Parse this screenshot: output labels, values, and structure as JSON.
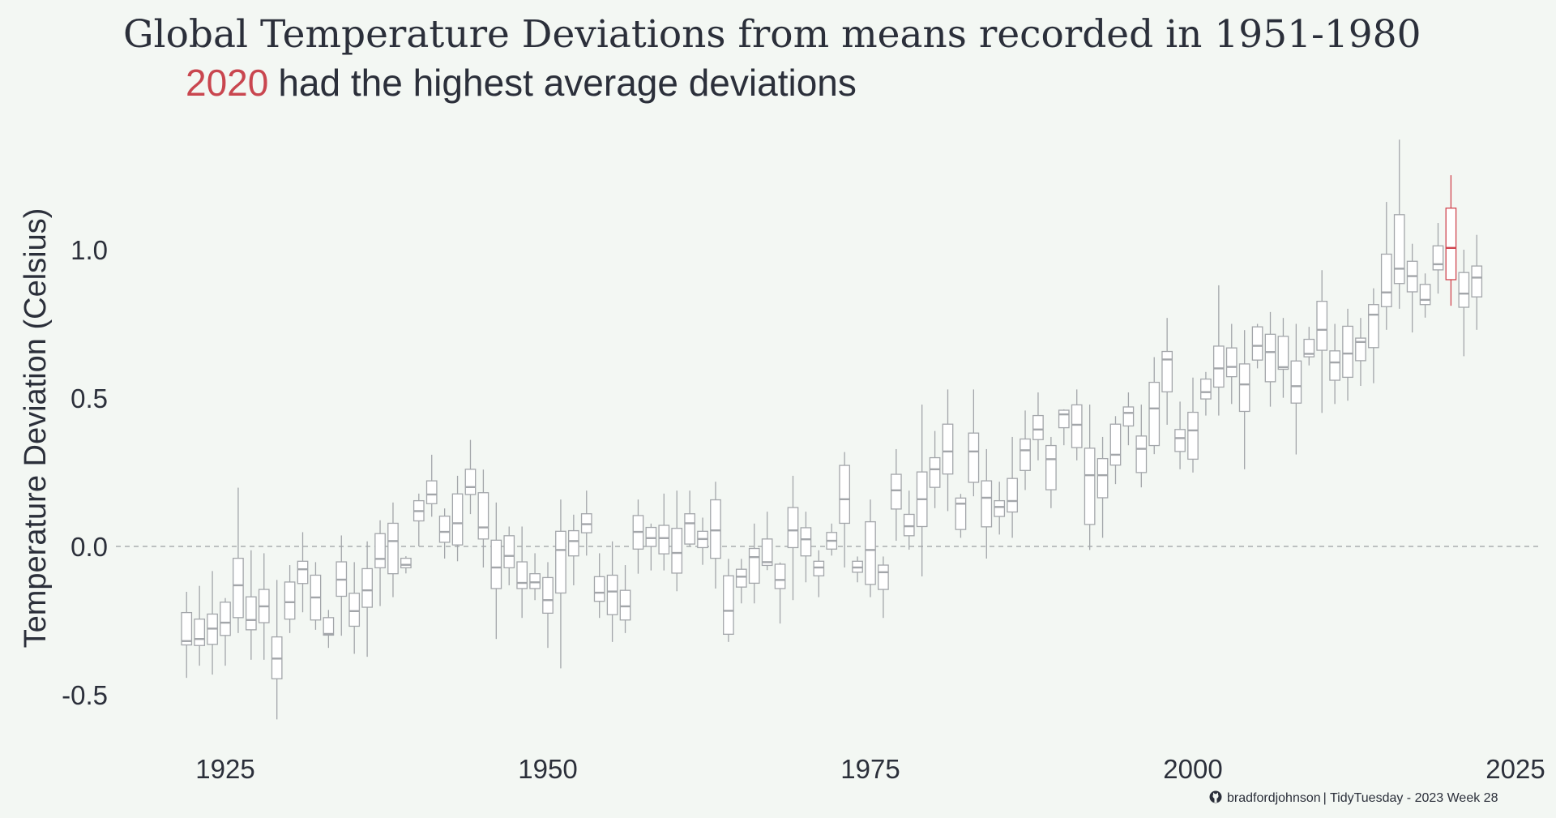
{
  "chart_data": {
    "type": "boxplot",
    "title": "Global Temperature Deviations from means recorded in 1951-1980",
    "subtitle": {
      "highlight": "2020",
      "text": "had the highest average deviations"
    },
    "xlabel": "",
    "ylabel": "Temperature Deviation (Celsius)",
    "xlim": [
      1918,
      2025
    ],
    "ylim": [
      -0.62,
      1.4
    ],
    "x_ticks": [
      "1925",
      "1950",
      "1975",
      "2000",
      "2025"
    ],
    "y_ticks": [
      "-0.5",
      "0.0",
      "0.5",
      "1.0"
    ],
    "reference_line": {
      "y": 0,
      "style": "dashed"
    },
    "grid": false,
    "colors": {
      "box": "#a3a6aa",
      "highlight": "#d0454f",
      "text": "#2b2f3a",
      "background": "#f3f7f3"
    },
    "highlight_year": 2020,
    "fields": [
      "year",
      "min",
      "q1",
      "median",
      "q3",
      "max"
    ],
    "boxes": [
      [
        1922,
        -0.443,
        -0.332,
        -0.319,
        -0.223,
        -0.153
      ],
      [
        1923,
        -0.402,
        -0.334,
        -0.312,
        -0.245,
        -0.133
      ],
      [
        1924,
        -0.432,
        -0.33,
        -0.277,
        -0.228,
        -0.083
      ],
      [
        1925,
        -0.402,
        -0.3,
        -0.257,
        -0.188,
        -0.174
      ],
      [
        1926,
        -0.292,
        -0.24,
        -0.131,
        -0.04,
        0.198
      ],
      [
        1927,
        -0.382,
        -0.281,
        -0.248,
        -0.17,
        -0.013
      ],
      [
        1928,
        -0.382,
        -0.257,
        -0.202,
        -0.145,
        -0.023
      ],
      [
        1929,
        -0.583,
        -0.446,
        -0.378,
        -0.305,
        -0.113
      ],
      [
        1930,
        -0.292,
        -0.245,
        -0.188,
        -0.12,
        -0.063
      ],
      [
        1931,
        -0.222,
        -0.125,
        -0.077,
        -0.05,
        0.048
      ],
      [
        1932,
        -0.281,
        -0.248,
        -0.172,
        -0.097,
        -0.053
      ],
      [
        1933,
        -0.342,
        -0.299,
        -0.295,
        -0.24,
        -0.214
      ],
      [
        1934,
        -0.301,
        -0.168,
        -0.112,
        -0.052,
        0.037
      ],
      [
        1935,
        -0.362,
        -0.269,
        -0.218,
        -0.158,
        -0.053
      ],
      [
        1936,
        -0.372,
        -0.205,
        -0.148,
        -0.075,
        0.017
      ],
      [
        1937,
        -0.201,
        -0.072,
        -0.042,
        0.043,
        0.088
      ],
      [
        1938,
        -0.171,
        -0.092,
        0.018,
        0.078,
        0.148
      ],
      [
        1939,
        -0.091,
        -0.072,
        -0.062,
        -0.04,
        -0.033
      ],
      [
        1940,
        0.0,
        0.086,
        0.119,
        0.154,
        0.178
      ],
      [
        1941,
        0.1,
        0.144,
        0.175,
        0.221,
        0.309
      ],
      [
        1942,
        -0.041,
        0.014,
        0.049,
        0.102,
        0.128
      ],
      [
        1943,
        -0.05,
        0.005,
        0.078,
        0.177,
        0.238
      ],
      [
        1944,
        0.109,
        0.175,
        0.2,
        0.26,
        0.359
      ],
      [
        1945,
        -0.071,
        0.025,
        0.064,
        0.181,
        0.259
      ],
      [
        1946,
        -0.312,
        -0.142,
        -0.071,
        0.021,
        0.148
      ],
      [
        1947,
        -0.131,
        -0.072,
        -0.032,
        0.036,
        0.067
      ],
      [
        1948,
        -0.241,
        -0.142,
        -0.123,
        -0.052,
        0.067
      ],
      [
        1949,
        -0.181,
        -0.142,
        -0.121,
        -0.092,
        -0.023
      ],
      [
        1950,
        -0.342,
        -0.225,
        -0.181,
        -0.105,
        -0.053
      ],
      [
        1951,
        -0.411,
        -0.157,
        -0.012,
        0.051,
        0.158
      ],
      [
        1952,
        -0.131,
        -0.032,
        0.018,
        0.053,
        0.107
      ],
      [
        1953,
        -0.031,
        0.046,
        0.075,
        0.11,
        0.188
      ],
      [
        1954,
        -0.241,
        -0.185,
        -0.156,
        -0.102,
        -0.023
      ],
      [
        1955,
        -0.322,
        -0.23,
        -0.152,
        -0.097,
        0.017
      ],
      [
        1956,
        -0.292,
        -0.248,
        -0.202,
        -0.148,
        -0.063
      ],
      [
        1957,
        -0.092,
        -0.009,
        0.049,
        0.104,
        0.158
      ],
      [
        1958,
        -0.081,
        0.0,
        0.028,
        0.064,
        0.077
      ],
      [
        1959,
        -0.081,
        -0.025,
        0.028,
        0.071,
        0.178
      ],
      [
        1960,
        -0.151,
        -0.09,
        -0.022,
        0.061,
        0.188
      ],
      [
        1961,
        0.0,
        0.008,
        0.078,
        0.11,
        0.188
      ],
      [
        1962,
        -0.062,
        -0.004,
        0.025,
        0.051,
        0.097
      ],
      [
        1963,
        -0.142,
        -0.04,
        0.054,
        0.157,
        0.218
      ],
      [
        1964,
        -0.322,
        -0.296,
        -0.217,
        -0.099,
        -0.042
      ],
      [
        1965,
        -0.192,
        -0.137,
        -0.102,
        -0.077,
        -0.042
      ],
      [
        1966,
        -0.192,
        -0.124,
        -0.036,
        -0.007,
        0.077
      ],
      [
        1967,
        -0.08,
        -0.064,
        -0.053,
        0.025,
        0.117
      ],
      [
        1968,
        -0.26,
        -0.142,
        -0.113,
        -0.06,
        -0.054
      ],
      [
        1969,
        -0.181,
        -0.004,
        0.054,
        0.131,
        0.238
      ],
      [
        1970,
        -0.121,
        -0.032,
        0.024,
        0.063,
        0.117
      ],
      [
        1971,
        -0.171,
        -0.099,
        -0.071,
        -0.05,
        -0.013
      ],
      [
        1972,
        -0.031,
        -0.009,
        0.019,
        0.047,
        0.077
      ],
      [
        1973,
        -0.071,
        0.078,
        0.159,
        0.273,
        0.318
      ],
      [
        1974,
        -0.121,
        -0.087,
        -0.071,
        -0.05,
        -0.034
      ],
      [
        1975,
        -0.171,
        -0.128,
        -0.012,
        0.083,
        0.158
      ],
      [
        1976,
        -0.241,
        -0.145,
        -0.087,
        -0.063,
        -0.034
      ],
      [
        1977,
        0.019,
        0.126,
        0.189,
        0.243,
        0.328
      ],
      [
        1978,
        -0.011,
        0.036,
        0.068,
        0.108,
        0.188
      ],
      [
        1979,
        -0.101,
        0.067,
        0.159,
        0.251,
        0.478
      ],
      [
        1980,
        0.129,
        0.199,
        0.26,
        0.299,
        0.389
      ],
      [
        1981,
        0.119,
        0.244,
        0.32,
        0.412,
        0.529
      ],
      [
        1982,
        0.029,
        0.057,
        0.144,
        0.163,
        0.177
      ],
      [
        1983,
        0.169,
        0.216,
        0.32,
        0.382,
        0.529
      ],
      [
        1984,
        -0.041,
        0.066,
        0.164,
        0.221,
        0.328
      ],
      [
        1985,
        0.04,
        0.101,
        0.133,
        0.154,
        0.218
      ],
      [
        1986,
        0.029,
        0.116,
        0.153,
        0.229,
        0.369
      ],
      [
        1987,
        0.19,
        0.256,
        0.324,
        0.362,
        0.458
      ],
      [
        1988,
        0.29,
        0.36,
        0.394,
        0.441,
        0.519
      ],
      [
        1989,
        0.129,
        0.191,
        0.294,
        0.34,
        0.369
      ],
      [
        1990,
        0.341,
        0.4,
        0.445,
        0.459,
        0.462
      ],
      [
        1991,
        0.29,
        0.333,
        0.41,
        0.477,
        0.529
      ],
      [
        1992,
        -0.012,
        0.074,
        0.24,
        0.331,
        0.478
      ],
      [
        1993,
        0.029,
        0.164,
        0.24,
        0.296,
        0.369
      ],
      [
        1994,
        0.21,
        0.274,
        0.309,
        0.412,
        0.439
      ],
      [
        1995,
        0.341,
        0.406,
        0.45,
        0.47,
        0.519
      ],
      [
        1996,
        0.199,
        0.249,
        0.329,
        0.372,
        0.478
      ],
      [
        1997,
        0.311,
        0.34,
        0.465,
        0.553,
        0.638
      ],
      [
        1998,
        0.41,
        0.521,
        0.63,
        0.657,
        0.77
      ],
      [
        1999,
        0.26,
        0.32,
        0.365,
        0.394,
        0.488
      ],
      [
        2000,
        0.249,
        0.294,
        0.391,
        0.452,
        0.569
      ],
      [
        2001,
        0.441,
        0.497,
        0.52,
        0.564,
        0.588
      ],
      [
        2002,
        0.441,
        0.537,
        0.6,
        0.675,
        0.88
      ],
      [
        2003,
        0.48,
        0.572,
        0.605,
        0.669,
        0.75
      ],
      [
        2004,
        0.26,
        0.455,
        0.546,
        0.615,
        0.729
      ],
      [
        2005,
        0.6,
        0.628,
        0.676,
        0.74,
        0.75
      ],
      [
        2006,
        0.471,
        0.555,
        0.655,
        0.715,
        0.79
      ],
      [
        2007,
        0.501,
        0.597,
        0.604,
        0.708,
        0.77
      ],
      [
        2008,
        0.31,
        0.483,
        0.54,
        0.625,
        0.75
      ],
      [
        2009,
        0.61,
        0.639,
        0.649,
        0.698,
        0.74
      ],
      [
        2010,
        0.45,
        0.661,
        0.73,
        0.826,
        0.931
      ],
      [
        2011,
        0.48,
        0.56,
        0.62,
        0.659,
        0.75
      ],
      [
        2012,
        0.491,
        0.57,
        0.65,
        0.742,
        0.801
      ],
      [
        2013,
        0.541,
        0.626,
        0.689,
        0.702,
        0.77
      ],
      [
        2014,
        0.55,
        0.67,
        0.781,
        0.815,
        0.87
      ],
      [
        2015,
        0.73,
        0.808,
        0.856,
        0.985,
        1.161
      ],
      [
        2016,
        0.801,
        0.886,
        0.936,
        1.118,
        1.371
      ],
      [
        2017,
        0.721,
        0.858,
        0.911,
        0.961,
        1.02
      ],
      [
        2018,
        0.771,
        0.815,
        0.831,
        0.883,
        0.92
      ],
      [
        2019,
        0.852,
        0.932,
        0.951,
        1.013,
        1.09
      ],
      [
        2020,
        0.811,
        0.899,
        1.006,
        1.14,
        1.251
      ],
      [
        2021,
        0.641,
        0.806,
        0.852,
        0.923,
        1.0
      ],
      [
        2022,
        0.73,
        0.841,
        0.906,
        0.945,
        1.05
      ]
    ]
  },
  "caption": {
    "icon": "github-icon",
    "user": "bradfordjohnson",
    "text": "| TidyTuesday - 2023 Week 28"
  }
}
